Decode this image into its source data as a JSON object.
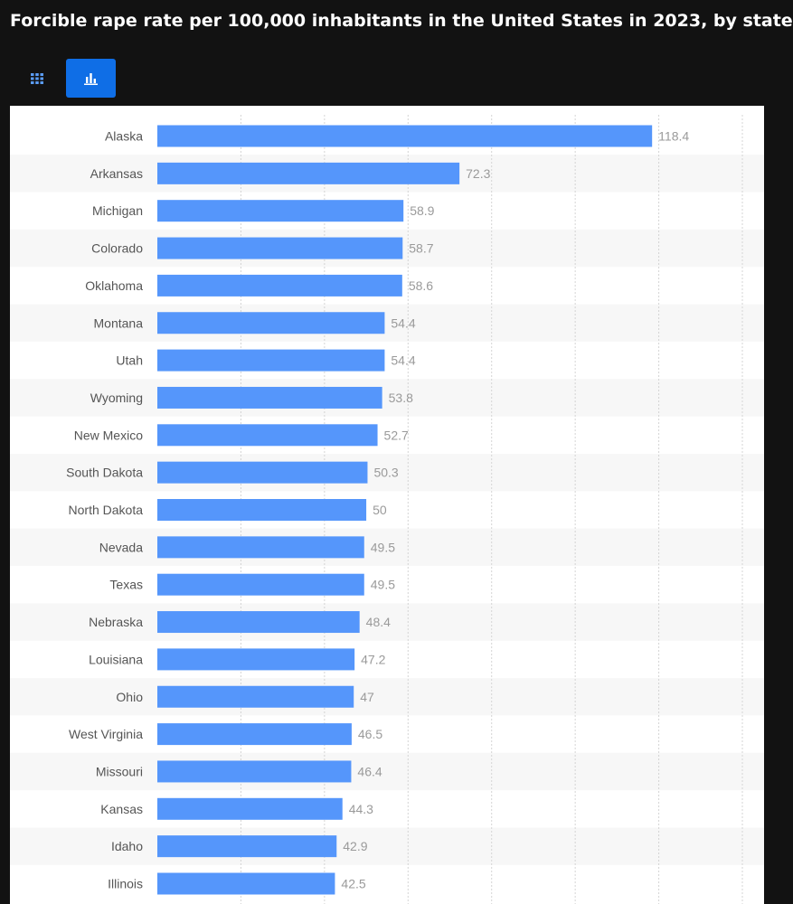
{
  "header": {
    "title": "Forcible rape rate per 100,000 inhabitants in the United States in 2023, by state"
  },
  "toolbar": {
    "table_icon": "grid-icon",
    "chart_icon": "bar-chart-icon",
    "active_view": "chart"
  },
  "colors": {
    "bar": "#5596fb",
    "stripe": "#f7f7f7",
    "active_button": "#0f6ee6"
  },
  "chart_data": {
    "type": "bar",
    "orientation": "horizontal",
    "categories": [
      "Alaska",
      "Arkansas",
      "Michigan",
      "Colorado",
      "Oklahoma",
      "Montana",
      "Utah",
      "Wyoming",
      "New Mexico",
      "South Dakota",
      "North Dakota",
      "Nevada",
      "Texas",
      "Nebraska",
      "Louisiana",
      "Ohio",
      "West Virginia",
      "Missouri",
      "Kansas",
      "Idaho",
      "Illinois"
    ],
    "values": [
      118.4,
      72.3,
      58.9,
      58.7,
      58.6,
      54.4,
      54.4,
      53.8,
      52.7,
      50.3,
      50,
      49.5,
      49.5,
      48.4,
      47.2,
      47,
      46.5,
      46.4,
      44.3,
      42.9,
      42.5
    ],
    "value_labels": [
      "118.4",
      "72.3",
      "58.9",
      "58.7",
      "58.6",
      "54.4",
      "54.4",
      "53.8",
      "52.7",
      "50.3",
      "50",
      "49.5",
      "49.5",
      "48.4",
      "47.2",
      "47",
      "46.5",
      "46.4",
      "44.3",
      "42.9",
      "42.5"
    ],
    "xlim": [
      0,
      140
    ],
    "gridlines_at": [
      20,
      40,
      60,
      80,
      100,
      120,
      140
    ],
    "grid": true,
    "row_striping": true
  }
}
